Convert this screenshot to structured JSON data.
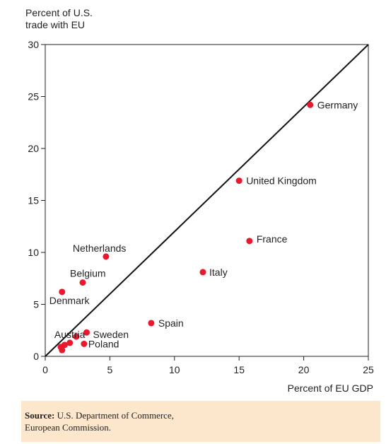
{
  "source": {
    "label": "Source:",
    "line1": " U.S. Department of Commerce,",
    "line2": "European Commission."
  },
  "chart_data": {
    "type": "scatter",
    "title": "",
    "ylabel_line1": "Percent of U.S.",
    "ylabel_line2": "trade with EU",
    "xlabel": "Percent of EU GDP",
    "xlim": [
      0,
      25
    ],
    "ylim": [
      0,
      30
    ],
    "xticks": [
      0,
      5,
      10,
      15,
      20,
      25
    ],
    "yticks": [
      0,
      5,
      10,
      15,
      20,
      25,
      30
    ],
    "grid": false,
    "reference_line": {
      "from": [
        0,
        0
      ],
      "to": [
        25,
        30
      ]
    },
    "point_color": "#e8192c",
    "points": [
      {
        "name": "Germany",
        "x": 20.5,
        "y": 24.2
      },
      {
        "name": "United Kingdom",
        "x": 15.0,
        "y": 16.9
      },
      {
        "name": "France",
        "x": 15.8,
        "y": 11.1
      },
      {
        "name": "Italy",
        "x": 12.2,
        "y": 8.1
      },
      {
        "name": "Netherlands",
        "x": 4.7,
        "y": 9.6
      },
      {
        "name": "Belgium",
        "x": 2.9,
        "y": 7.1
      },
      {
        "name": "Denmark",
        "x": 1.3,
        "y": 6.2
      },
      {
        "name": "Spain",
        "x": 8.2,
        "y": 3.2
      },
      {
        "name": "Austria",
        "x": 2.4,
        "y": 1.9
      },
      {
        "name": "Sweden",
        "x": 3.2,
        "y": 2.3
      },
      {
        "name": "Poland",
        "x": 3.0,
        "y": 1.2
      },
      {
        "name": "",
        "x": 1.9,
        "y": 1.3
      },
      {
        "name": "",
        "x": 1.5,
        "y": 1.1
      },
      {
        "name": "",
        "x": 1.2,
        "y": 0.9
      },
      {
        "name": "",
        "x": 1.3,
        "y": 0.6
      }
    ]
  }
}
